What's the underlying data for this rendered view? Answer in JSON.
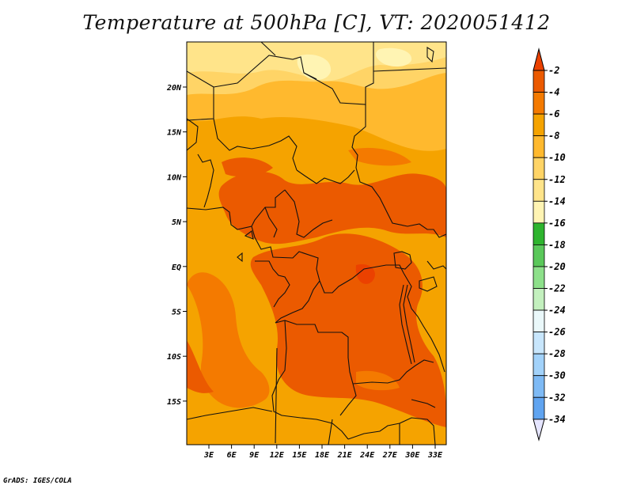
{
  "title": "Temperature at 500hPa [C], VT: 2020051412",
  "footer": "GrADS: IGES/COLA",
  "map": {
    "lat_ticks": [
      "20N",
      "15N",
      "10N",
      "5N",
      "EQ",
      "5S",
      "10S",
      "15S"
    ],
    "lon_ticks": [
      "3E",
      "6E",
      "9E",
      "12E",
      "15E",
      "18E",
      "21E",
      "24E",
      "27E",
      "30E",
      "33E"
    ],
    "base_fill": "#F5A300"
  },
  "colorbar": {
    "labels": [
      "-2",
      "-4",
      "-6",
      "-8",
      "-10",
      "-12",
      "-14",
      "-16",
      "-18",
      "-20",
      "-22",
      "-24",
      "-26",
      "-28",
      "-30",
      "-32",
      "-34"
    ],
    "colors": [
      "#E5E5FF",
      "#0A1F7A",
      "#1450C0",
      "#1E64D2",
      "#2E78DC",
      "#4690E6",
      "#60A4F0",
      "#7EBAF5",
      "#A2D2FA",
      "#C8E6FC",
      "#EAF8FA",
      "#C3F0BE",
      "#8DE08A",
      "#5AC85A",
      "#2EB42E",
      "#FFF4B3",
      "#FFE48A",
      "#FFD466",
      "#FFB92E",
      "#F5A300",
      "#F47A00",
      "#EB5A00",
      "#EB4100"
    ]
  }
}
